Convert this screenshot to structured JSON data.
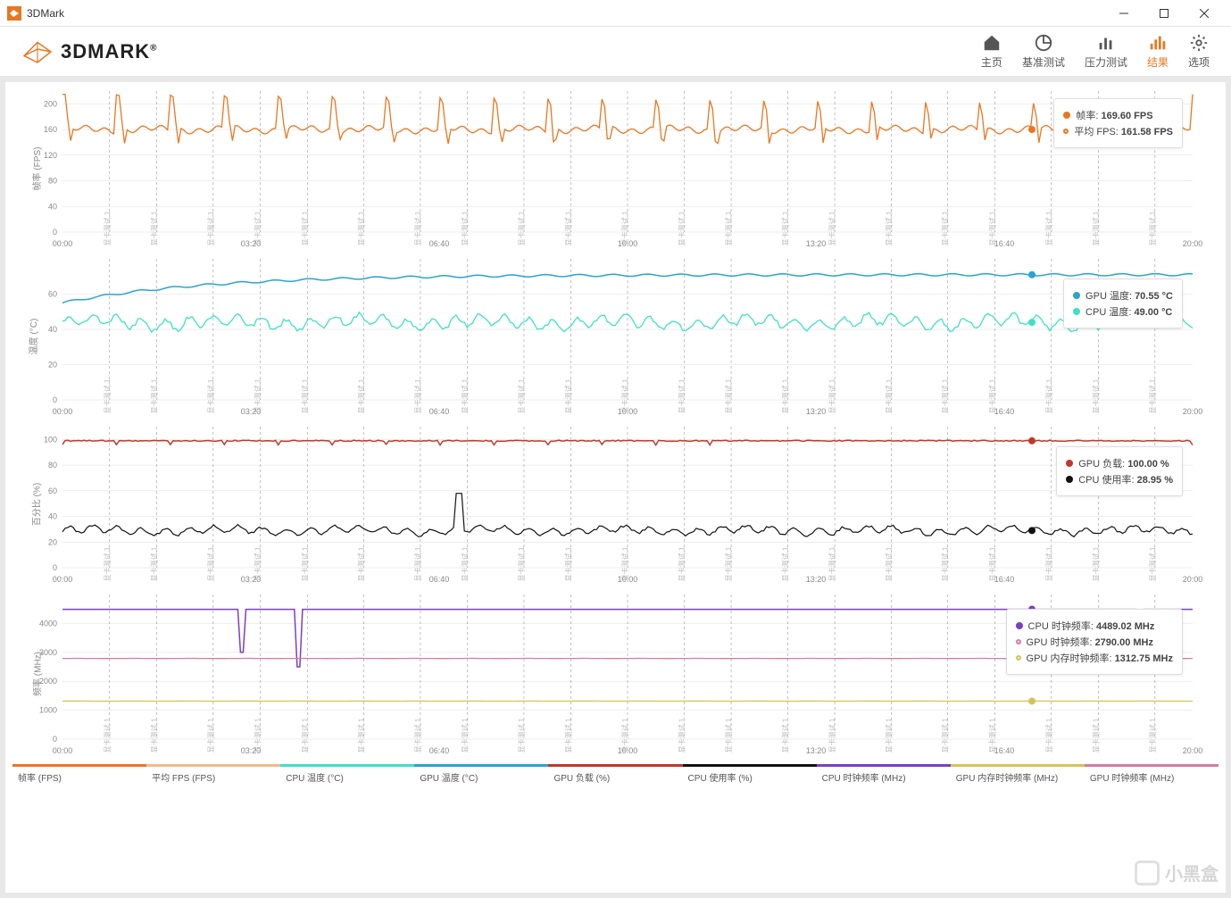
{
  "window": {
    "title": "3DMark"
  },
  "logo": {
    "text": "3DMARK",
    "reg": "®"
  },
  "nav": [
    {
      "id": "home",
      "label": "主页",
      "active": false
    },
    {
      "id": "benchmarks",
      "label": "基准测试",
      "active": false
    },
    {
      "id": "stress",
      "label": "压力测试",
      "active": false
    },
    {
      "id": "results",
      "label": "结果",
      "active": true
    },
    {
      "id": "options",
      "label": "选项",
      "active": false
    }
  ],
  "x_axis": {
    "ticks": [
      "00:00",
      "03:20",
      "06:40",
      "10:00",
      "13:20",
      "16:40",
      "20:00"
    ],
    "max_sec": 1200,
    "marker_label": "显卡测试 1",
    "marker_positions_sec": [
      50,
      100,
      160,
      210,
      260,
      320,
      380,
      430,
      490,
      540,
      600,
      660,
      710,
      770,
      820,
      880,
      940,
      990,
      1050,
      1100,
      1160
    ]
  },
  "charts": {
    "fps": {
      "ylabel": "帧率 (FPS)",
      "ylim": [
        0,
        220
      ],
      "yticks": [
        0,
        40,
        80,
        120,
        160,
        200
      ],
      "legend": [
        {
          "label": "帧率:",
          "value": "169.60 FPS",
          "color": "#e87722",
          "hollow": false
        },
        {
          "label": "平均 FPS:",
          "value": "161.58 FPS",
          "color": "#e87722",
          "hollow": true
        }
      ],
      "series": [
        {
          "name": "fps",
          "color": "#e87722",
          "stroke_width": 1.3,
          "baseline": 160,
          "spike": 215,
          "pattern": "spiky"
        }
      ]
    },
    "temp": {
      "ylabel": "温度 (°C)",
      "ylim": [
        0,
        80
      ],
      "yticks": [
        0,
        20,
        40,
        60
      ],
      "legend": [
        {
          "label": "GPU 温度:",
          "value": "70.55 °C",
          "color": "#29a3d5",
          "hollow": false
        },
        {
          "label": "CPU 温度:",
          "value": "49.00 °C",
          "color": "#3ee0c6",
          "hollow": false
        }
      ],
      "series": [
        {
          "name": "gpu_temp",
          "color": "#29a3d5",
          "stroke_width": 1.5,
          "start": 55,
          "end": 71,
          "pattern": "rise_flat"
        },
        {
          "name": "cpu_temp",
          "color": "#3ee0c6",
          "stroke_width": 1.3,
          "baseline": 44,
          "var": 6,
          "pattern": "noisy_flat"
        }
      ]
    },
    "pct": {
      "ylabel": "百分比 (%)",
      "ylim": [
        0,
        110
      ],
      "yticks": [
        0,
        20,
        40,
        60,
        80,
        100
      ],
      "legend": [
        {
          "label": "GPU 负载:",
          "value": "100.00 %",
          "color": "#c0392b",
          "hollow": false
        },
        {
          "label": "CPU 使用率:",
          "value": "28.95 %",
          "color": "#111",
          "hollow": false
        }
      ],
      "series": [
        {
          "name": "gpu_load",
          "color": "#c0392b",
          "stroke_width": 1.5,
          "baseline": 99,
          "var": 2,
          "pattern": "flat_dips"
        },
        {
          "name": "cpu_use",
          "color": "#111",
          "stroke_width": 1.2,
          "baseline": 29,
          "var": 5,
          "pattern": "noisy_flat",
          "spike_at": 420,
          "spike_to": 58
        }
      ]
    },
    "clock": {
      "ylabel": "频率 (MHz)",
      "ylim": [
        0,
        5000
      ],
      "yticks": [
        0,
        1000,
        2000,
        3000,
        4000
      ],
      "legend": [
        {
          "label": "CPU 时钟频率:",
          "value": "4489.02 MHz",
          "color": "#7b3fbf",
          "hollow": false
        },
        {
          "label": "GPU 时钟频率:",
          "value": "2790.00 MHz",
          "color": "#d87ba0",
          "hollow": true
        },
        {
          "label": "GPU 内存时钟频率:",
          "value": "1312.75 MHz",
          "color": "#d4c35a",
          "hollow": true
        }
      ],
      "series": [
        {
          "name": "cpu_clock",
          "color": "#7b3fbf",
          "stroke_width": 1.5,
          "baseline": 4489,
          "pattern": "flat_drops",
          "drops": [
            {
              "x": 190,
              "to": 3000
            },
            {
              "x": 250,
              "to": 2500
            },
            {
              "x": 1145,
              "to": 2700
            }
          ]
        },
        {
          "name": "gpu_clock",
          "color": "#d87ba0",
          "stroke_width": 1.3,
          "baseline": 2790,
          "pattern": "flat"
        },
        {
          "name": "gpu_mem_clock",
          "color": "#d4c35a",
          "stroke_width": 1.3,
          "baseline": 1313,
          "pattern": "flat"
        }
      ]
    }
  },
  "bottom_legend": [
    {
      "label": "帧率 (FPS)",
      "color": "#e87722"
    },
    {
      "label": "平均 FPS (FPS)",
      "color": "#f5b889"
    },
    {
      "label": "CPU 温度 (°C)",
      "color": "#3ee0c6"
    },
    {
      "label": "GPU 温度 (°C)",
      "color": "#29a3d5"
    },
    {
      "label": "GPU 负载 (%)",
      "color": "#c0392b"
    },
    {
      "label": "CPU 使用率 (%)",
      "color": "#111"
    },
    {
      "label": "CPU 时钟频率 (MHz)",
      "color": "#7b3fbf"
    },
    {
      "label": "GPU 内存时钟频率 (MHz)",
      "color": "#d4c35a"
    },
    {
      "label": "GPU 时钟频率 (MHz)",
      "color": "#d87ba0"
    }
  ],
  "watermark": "小黑盒",
  "colors": {
    "bg": "#ffffff",
    "grid": "#dcdcdc",
    "axis_text": "#888888",
    "accent": "#e87722"
  }
}
